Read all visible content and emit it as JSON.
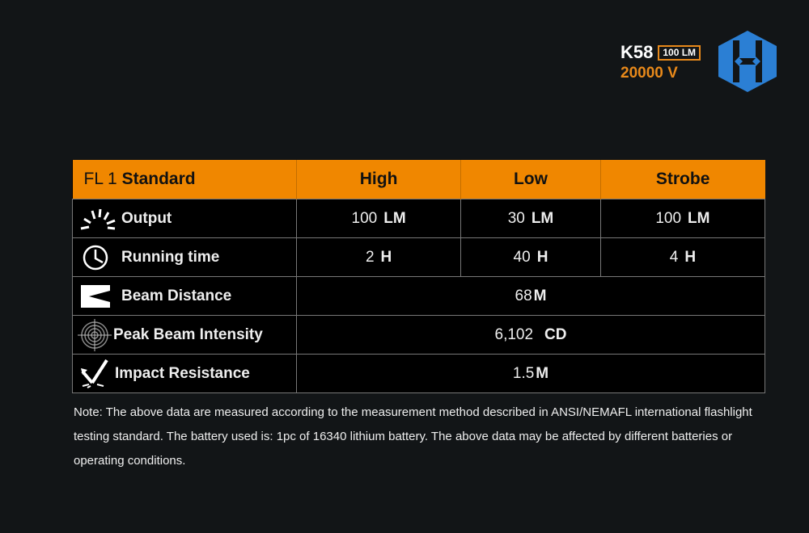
{
  "brand": {
    "model": "K58",
    "badge": "100 LM",
    "voltage": "20000 V"
  },
  "colors": {
    "accent": "#f08700",
    "logo": "#2b7fd4",
    "background": "#121517"
  },
  "table": {
    "header": {
      "prefix": "FL 1",
      "title": "Standard",
      "columns": [
        "High",
        "Low",
        "Strobe"
      ]
    },
    "rows": [
      {
        "icon": "light-burst-icon",
        "label": "Output",
        "cells": [
          {
            "v": "100",
            "u": "LM"
          },
          {
            "v": "30",
            "u": "LM"
          },
          {
            "v": "100",
            "u": "LM"
          }
        ]
      },
      {
        "icon": "clock-icon",
        "label": "Running time",
        "cells": [
          {
            "v": "2",
            "u": "H"
          },
          {
            "v": "40",
            "u": "H"
          },
          {
            "v": "4",
            "u": "H"
          }
        ]
      },
      {
        "icon": "beam-icon",
        "label": "Beam Distance",
        "value": {
          "v": "68",
          "u": "M"
        }
      },
      {
        "icon": "target-icon",
        "label": "Peak Beam Intensity",
        "value": {
          "v": "6,102",
          "u": "CD"
        }
      },
      {
        "icon": "impact-icon",
        "label": "Impact Resistance",
        "value": {
          "v": "1.5",
          "u": "M"
        }
      }
    ]
  },
  "note": "Note: The above data are measured according to the measurement method described in ANSI/NEMAFL international flashlight testing standard. The battery used is: 1pc of 16340 lithium battery.  The above data may be affected by different batteries or operating conditions."
}
